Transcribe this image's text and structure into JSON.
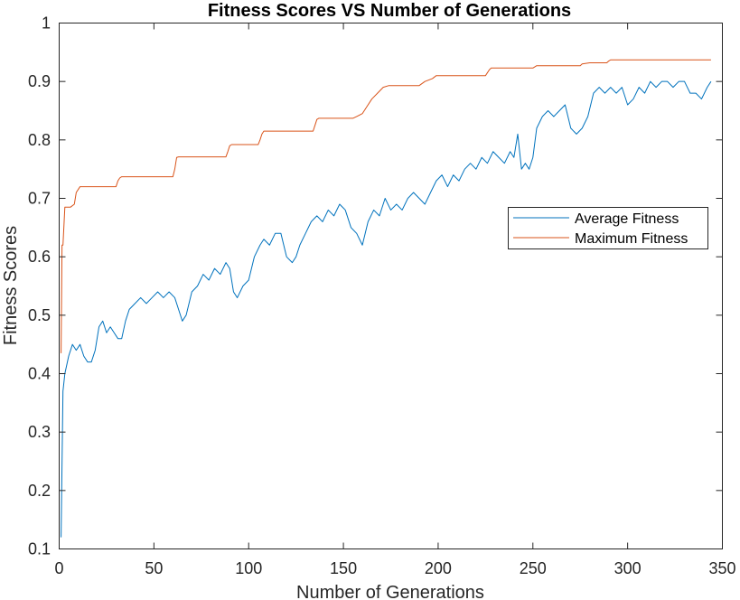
{
  "chart_data": {
    "type": "line",
    "title": "Fitness Scores VS Number of Generations",
    "xlabel": "Number of Generations",
    "ylabel": "Fitness Scores",
    "xlim": [
      0,
      350
    ],
    "ylim": [
      0.1,
      1
    ],
    "x_ticks": [
      "0",
      "50",
      "100",
      "150",
      "200",
      "250",
      "300",
      "350"
    ],
    "y_ticks": [
      "0.1",
      "0.2",
      "0.3",
      "0.4",
      "0.5",
      "0.6",
      "0.7",
      "0.8",
      "0.9",
      "1"
    ],
    "grid": false,
    "legend_position": "right",
    "series": [
      {
        "name": "Average Fitness",
        "color": "#0072BD",
        "x": [
          1,
          2,
          3,
          5,
          7,
          9,
          11,
          13,
          15,
          17,
          19,
          21,
          23,
          25,
          27,
          29,
          31,
          33,
          35,
          37,
          40,
          43,
          46,
          49,
          52,
          55,
          58,
          61,
          63,
          65,
          67,
          70,
          73,
          76,
          79,
          82,
          85,
          88,
          90,
          92,
          94,
          97,
          100,
          103,
          106,
          108,
          111,
          114,
          117,
          120,
          123,
          125,
          127,
          130,
          133,
          136,
          139,
          142,
          145,
          148,
          151,
          154,
          157,
          160,
          163,
          166,
          169,
          172,
          175,
          178,
          181,
          184,
          187,
          190,
          193,
          196,
          199,
          202,
          205,
          208,
          211,
          214,
          217,
          220,
          223,
          226,
          229,
          232,
          235,
          238,
          240,
          242,
          244,
          246,
          248,
          250,
          252,
          255,
          258,
          261,
          264,
          267,
          270,
          273,
          276,
          279,
          282,
          285,
          288,
          291,
          294,
          297,
          300,
          303,
          306,
          309,
          312,
          315,
          318,
          321,
          324,
          327,
          330,
          333,
          336,
          339,
          342,
          344
        ],
        "y": [
          0.12,
          0.37,
          0.4,
          0.43,
          0.45,
          0.44,
          0.45,
          0.43,
          0.42,
          0.42,
          0.44,
          0.48,
          0.49,
          0.47,
          0.48,
          0.47,
          0.46,
          0.46,
          0.49,
          0.51,
          0.52,
          0.53,
          0.52,
          0.53,
          0.54,
          0.53,
          0.54,
          0.53,
          0.51,
          0.49,
          0.5,
          0.54,
          0.55,
          0.57,
          0.56,
          0.58,
          0.57,
          0.59,
          0.58,
          0.54,
          0.53,
          0.55,
          0.56,
          0.6,
          0.62,
          0.63,
          0.62,
          0.64,
          0.64,
          0.6,
          0.59,
          0.6,
          0.62,
          0.64,
          0.66,
          0.67,
          0.66,
          0.68,
          0.67,
          0.69,
          0.68,
          0.65,
          0.64,
          0.62,
          0.66,
          0.68,
          0.67,
          0.7,
          0.68,
          0.69,
          0.68,
          0.7,
          0.71,
          0.7,
          0.69,
          0.71,
          0.73,
          0.74,
          0.72,
          0.74,
          0.73,
          0.75,
          0.76,
          0.75,
          0.77,
          0.76,
          0.78,
          0.77,
          0.76,
          0.78,
          0.77,
          0.81,
          0.75,
          0.76,
          0.75,
          0.77,
          0.82,
          0.84,
          0.85,
          0.84,
          0.85,
          0.86,
          0.82,
          0.81,
          0.82,
          0.84,
          0.88,
          0.89,
          0.88,
          0.89,
          0.88,
          0.89,
          0.86,
          0.87,
          0.89,
          0.88,
          0.9,
          0.89,
          0.9,
          0.9,
          0.89,
          0.9,
          0.9,
          0.88,
          0.88,
          0.87,
          0.89,
          0.9
        ],
        "line_width": 1
      },
      {
        "name": "Maximum Fitness",
        "color": "#D95319",
        "x": [
          1,
          1.5,
          2,
          3,
          4,
          6,
          8,
          9,
          10,
          11,
          12,
          30,
          31,
          32,
          33,
          60,
          61,
          62,
          63,
          88,
          89,
          90,
          91,
          105,
          106,
          107,
          108,
          134,
          135,
          136,
          137,
          155,
          157,
          160,
          162,
          165,
          168,
          171,
          174,
          190,
          193,
          197,
          199,
          225,
          227,
          228,
          250,
          252,
          275,
          276,
          280,
          289,
          290,
          291,
          344
        ],
        "y": [
          0.435,
          0.62,
          0.62,
          0.685,
          0.685,
          0.685,
          0.69,
          0.71,
          0.715,
          0.72,
          0.72,
          0.72,
          0.73,
          0.735,
          0.737,
          0.737,
          0.75,
          0.77,
          0.771,
          0.771,
          0.78,
          0.79,
          0.792,
          0.792,
          0.8,
          0.81,
          0.815,
          0.815,
          0.825,
          0.835,
          0.837,
          0.837,
          0.84,
          0.845,
          0.855,
          0.87,
          0.88,
          0.89,
          0.893,
          0.893,
          0.9,
          0.905,
          0.91,
          0.91,
          0.92,
          0.923,
          0.923,
          0.927,
          0.927,
          0.93,
          0.932,
          0.932,
          0.935,
          0.937,
          0.937
        ],
        "line_width": 1
      }
    ]
  }
}
